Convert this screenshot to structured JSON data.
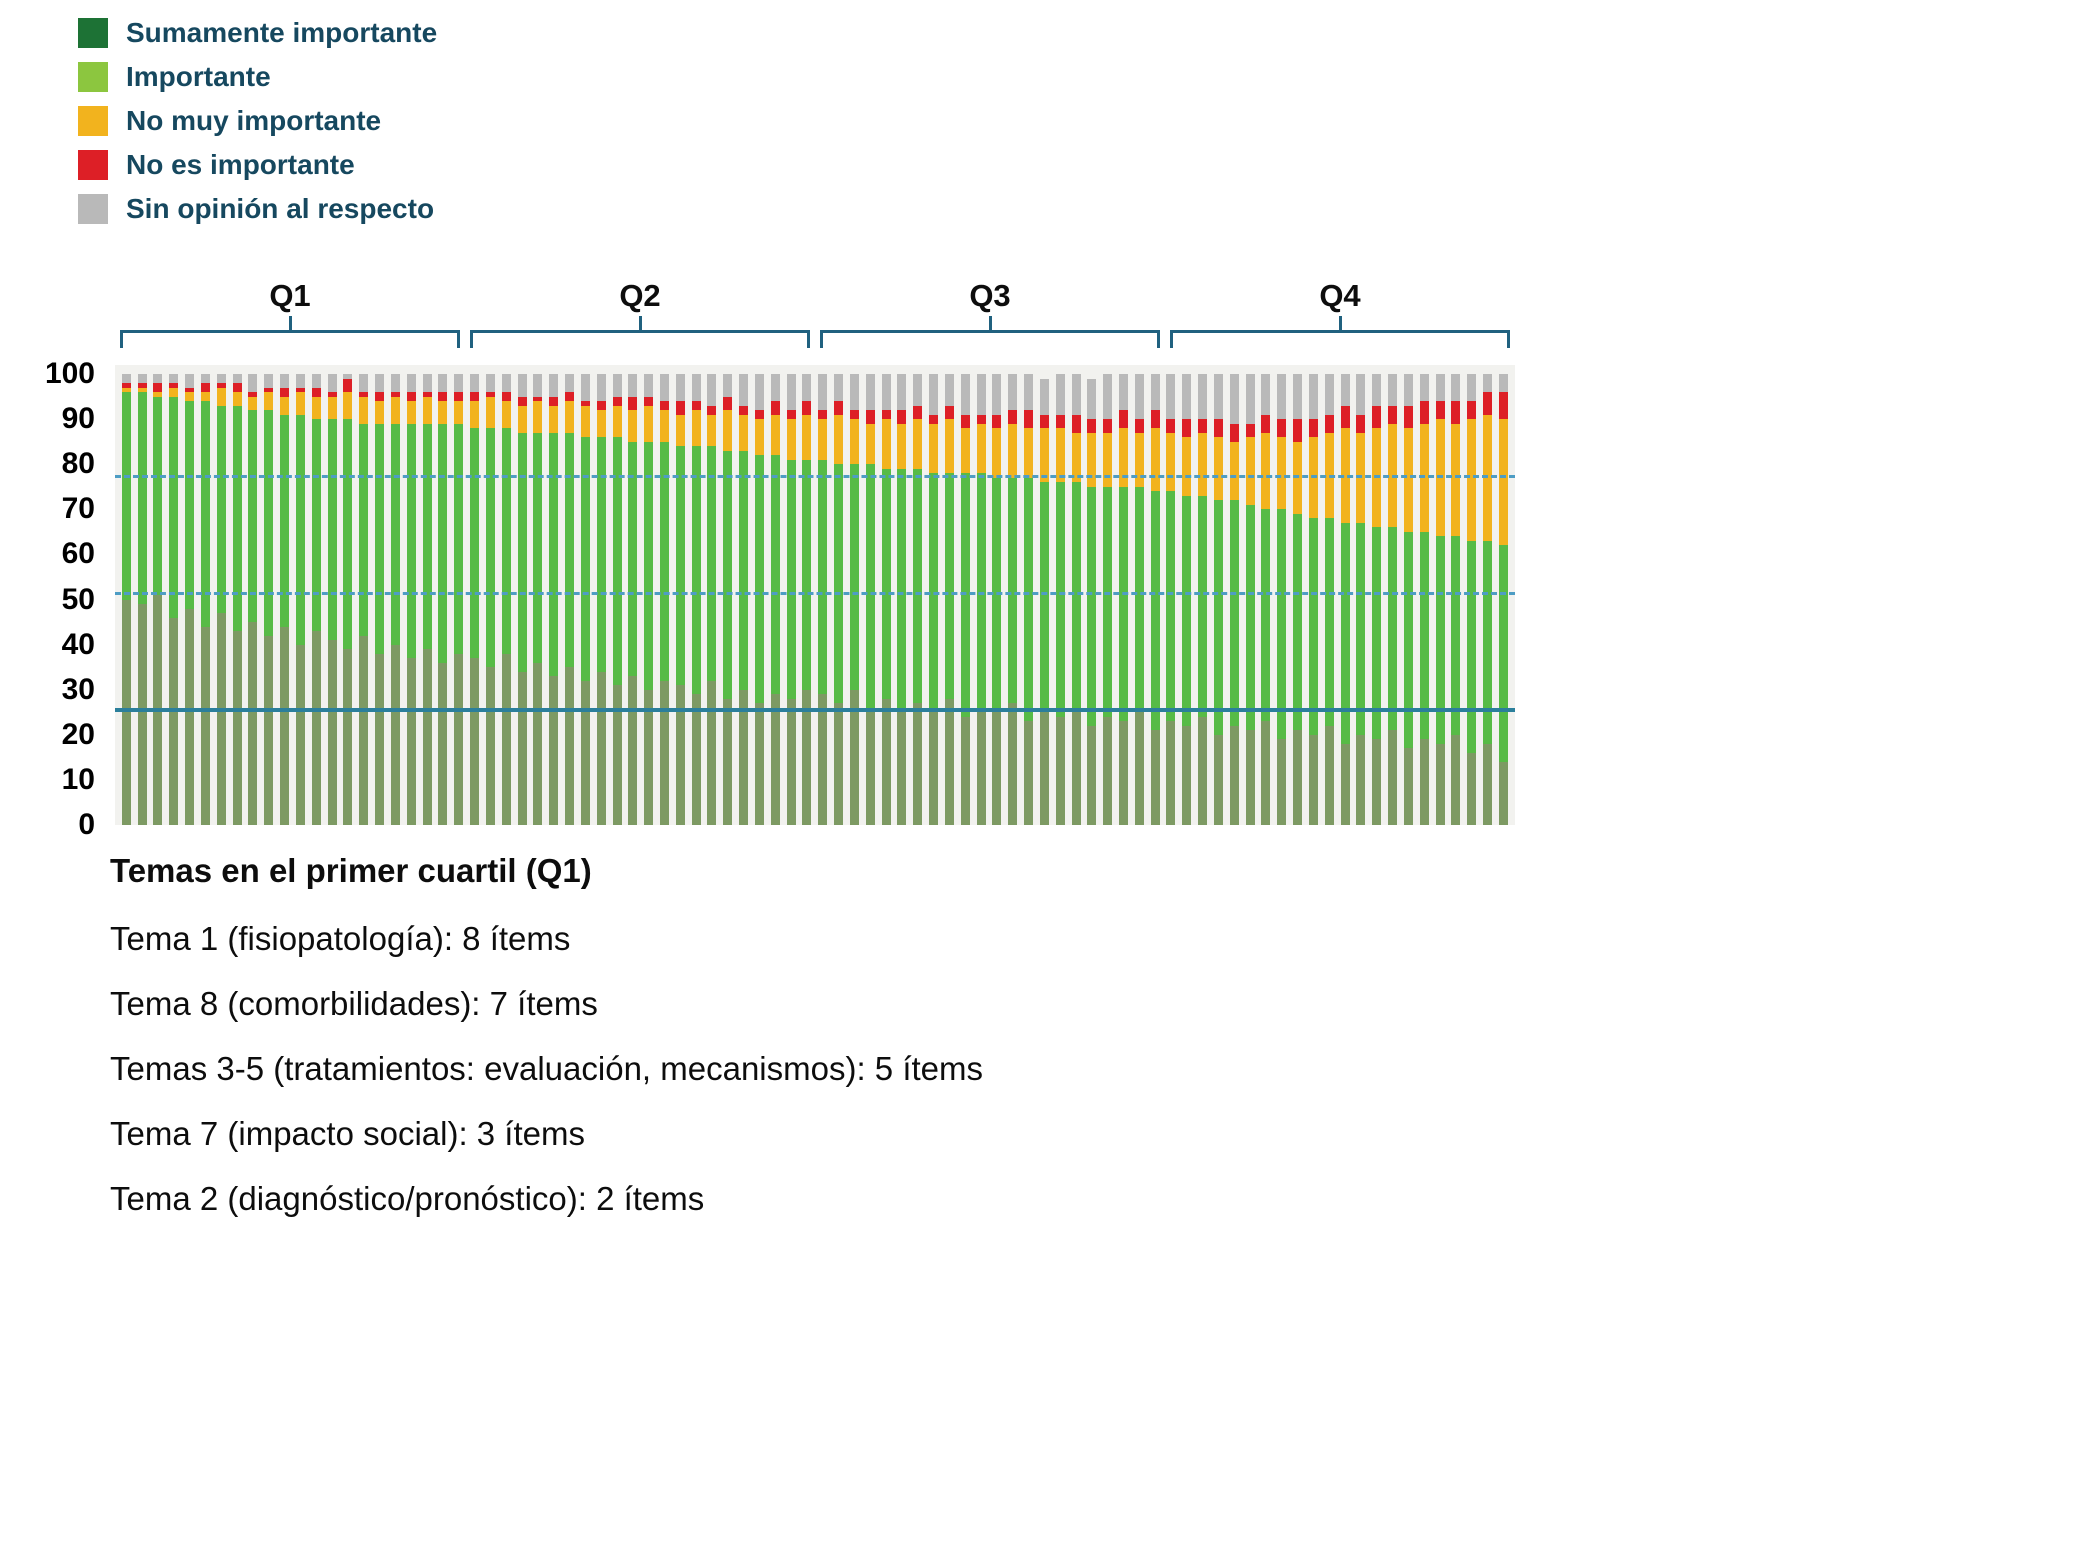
{
  "legend": {
    "items": [
      {
        "label": "Sumamente importante",
        "color": "#1d7235"
      },
      {
        "label": "Importante",
        "color": "#8cc63f"
      },
      {
        "label": "No muy importante",
        "color": "#f2b31e"
      },
      {
        "label": "No es importante",
        "color": "#dd1f26"
      },
      {
        "label": "Sin opinión al respecto",
        "color": "#b9b9b9"
      }
    ]
  },
  "quartiles": [
    "Q1",
    "Q2",
    "Q3",
    "Q4"
  ],
  "bracket_color": "#20617f",
  "y_axis": {
    "ticks": [
      100,
      90,
      80,
      70,
      60,
      50,
      40,
      30,
      20,
      10,
      0
    ],
    "max": 102
  },
  "reference_lines": [
    {
      "value": 77,
      "style": "dashed",
      "color": "#4e9dc4",
      "thickness": 3
    },
    {
      "value": 51,
      "style": "dashed",
      "color": "#4e9dc4",
      "thickness": 3
    },
    {
      "value": 25,
      "style": "solid",
      "color": "#2b7f9b",
      "thickness": 4
    }
  ],
  "chart_data": {
    "type": "bar",
    "stacked": true,
    "ylim": [
      0,
      102
    ],
    "n_items": 88,
    "series": [
      {
        "name": "Sumamente importante",
        "color": "#7d9a63",
        "values": [
          50,
          49,
          51,
          46,
          48,
          44,
          47,
          43,
          45,
          42,
          44,
          40,
          43,
          41,
          39,
          42,
          38,
          40,
          37,
          39,
          36,
          38,
          37,
          35,
          38,
          34,
          36,
          33,
          35,
          32,
          34,
          31,
          33,
          30,
          32,
          31,
          29,
          32,
          28,
          30,
          27,
          29,
          28,
          30,
          29,
          27,
          30,
          26,
          28,
          25,
          27,
          26,
          28,
          24,
          26,
          25,
          27,
          23,
          25,
          24,
          26,
          22,
          24,
          23,
          25,
          21,
          23,
          22,
          24,
          20,
          22,
          21,
          23,
          19,
          21,
          20,
          22,
          18,
          20,
          19,
          21,
          17,
          19,
          18,
          20,
          16,
          18,
          14
        ]
      },
      {
        "name": "Importante",
        "color": "#57bb46",
        "values": [
          46,
          47,
          44,
          49,
          46,
          50,
          46,
          50,
          47,
          50,
          47,
          51,
          47,
          49,
          51,
          47,
          51,
          49,
          52,
          50,
          53,
          51,
          51,
          53,
          50,
          53,
          51,
          54,
          52,
          54,
          52,
          55,
          52,
          55,
          53,
          53,
          55,
          52,
          55,
          53,
          55,
          53,
          53,
          51,
          52,
          53,
          50,
          54,
          51,
          54,
          52,
          52,
          50,
          54,
          52,
          52,
          50,
          54,
          51,
          52,
          50,
          53,
          51,
          52,
          50,
          53,
          51,
          51,
          49,
          52,
          50,
          50,
          47,
          51,
          48,
          48,
          46,
          49,
          47,
          47,
          45,
          48,
          46,
          46,
          44,
          47,
          45,
          48
        ]
      },
      {
        "name": "No muy importante",
        "color": "#f2b31e",
        "values": [
          1,
          1,
          1,
          2,
          2,
          2,
          4,
          3,
          3,
          4,
          4,
          5,
          5,
          5,
          6,
          6,
          5,
          6,
          5,
          6,
          5,
          5,
          6,
          7,
          6,
          6,
          7,
          6,
          7,
          7,
          6,
          7,
          7,
          8,
          7,
          7,
          8,
          7,
          9,
          8,
          8,
          9,
          9,
          10,
          9,
          11,
          10,
          9,
          11,
          10,
          11,
          11,
          12,
          10,
          11,
          11,
          12,
          11,
          12,
          12,
          11,
          12,
          12,
          13,
          12,
          14,
          13,
          13,
          14,
          14,
          13,
          15,
          17,
          16,
          16,
          18,
          19,
          21,
          20,
          22,
          23,
          23,
          24,
          26,
          25,
          27,
          28,
          28
        ]
      },
      {
        "name": "No es importante",
        "color": "#dd1f26",
        "values": [
          1,
          1,
          2,
          1,
          1,
          2,
          1,
          2,
          1,
          1,
          2,
          1,
          2,
          1,
          3,
          1,
          2,
          1,
          2,
          1,
          2,
          2,
          2,
          1,
          2,
          2,
          1,
          2,
          2,
          1,
          2,
          2,
          3,
          2,
          2,
          3,
          2,
          2,
          3,
          2,
          2,
          3,
          2,
          3,
          2,
          3,
          2,
          3,
          2,
          3,
          3,
          2,
          3,
          3,
          2,
          3,
          3,
          4,
          3,
          3,
          4,
          3,
          3,
          4,
          3,
          4,
          3,
          4,
          3,
          4,
          4,
          3,
          4,
          4,
          5,
          4,
          4,
          5,
          4,
          5,
          4,
          5,
          5,
          4,
          5,
          4,
          5,
          6
        ]
      },
      {
        "name": "Sin opinión al respecto",
        "color": "#b9b9b9",
        "values": [
          2,
          2,
          2,
          2,
          3,
          2,
          2,
          2,
          4,
          3,
          3,
          3,
          3,
          4,
          1,
          4,
          4,
          4,
          4,
          4,
          4,
          4,
          4,
          4,
          4,
          5,
          5,
          5,
          4,
          6,
          6,
          5,
          5,
          5,
          6,
          6,
          6,
          7,
          5,
          7,
          8,
          6,
          8,
          6,
          8,
          6,
          8,
          8,
          8,
          8,
          7,
          9,
          7,
          9,
          9,
          9,
          8,
          8,
          8,
          9,
          9,
          9,
          10,
          8,
          10,
          8,
          10,
          10,
          10,
          10,
          11,
          11,
          9,
          10,
          10,
          10,
          9,
          7,
          9,
          7,
          7,
          7,
          6,
          6,
          6,
          6,
          4,
          4
        ]
      }
    ]
  },
  "notes": {
    "title": "Temas en el primer cuartil (Q1)",
    "lines": [
      "Tema 1 (fisiopatología): 8 ítems",
      "Tema 8 (comorbilidades): 7 ítems",
      "Temas 3-5 (tratamientos: evaluación, mecanismos): 5 ítems",
      "Tema 7 (impacto social): 3 ítems",
      "Tema 2 (diagnóstico/pronóstico): 2 ítems"
    ]
  }
}
